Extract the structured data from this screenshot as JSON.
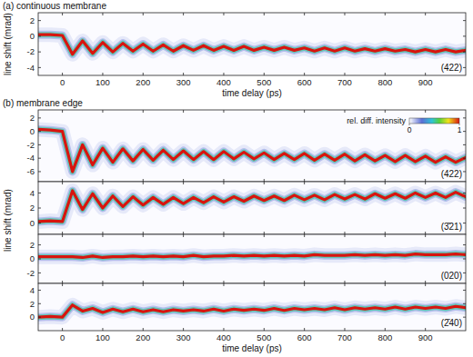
{
  "chart_data": [
    {
      "type": "line",
      "title": "(a) continuous membrane",
      "y_label": "line shift (mrad)",
      "x_label": "time delay (ps)",
      "annotations": [
        "(422)"
      ],
      "xlim": [
        -60,
        1000
      ],
      "xticks": [
        0,
        100,
        200,
        300,
        400,
        500,
        600,
        700,
        800,
        900
      ],
      "ylim": [
        -5,
        3
      ],
      "yticks": [
        2,
        0,
        -2,
        -4
      ],
      "x": [
        -60,
        -30,
        0,
        25,
        50,
        75,
        100,
        125,
        150,
        175,
        200,
        225,
        250,
        275,
        300,
        325,
        350,
        375,
        400,
        425,
        450,
        475,
        500,
        525,
        550,
        575,
        600,
        625,
        650,
        675,
        700,
        725,
        750,
        775,
        800,
        825,
        850,
        875,
        900,
        925,
        950,
        975,
        1000
      ],
      "values": [
        0.2,
        0.2,
        0.1,
        -2.3,
        -0.6,
        -2.2,
        -0.8,
        -2.0,
        -0.9,
        -1.9,
        -1.0,
        -1.9,
        -1.1,
        -1.9,
        -1.2,
        -1.8,
        -1.2,
        -1.8,
        -1.3,
        -1.8,
        -1.3,
        -1.8,
        -1.4,
        -1.8,
        -1.4,
        -1.8,
        -1.5,
        -1.9,
        -1.5,
        -1.9,
        -1.5,
        -1.9,
        -1.6,
        -1.9,
        -1.6,
        -1.9,
        -1.7,
        -2.0,
        -1.7,
        -2.0,
        -1.7,
        -2.0,
        -1.8
      ]
    },
    {
      "type": "line",
      "title": "(b) membrane edge",
      "y_label": "line shift (mrad)",
      "tick_labels": "y",
      "annotations": [
        "(422)"
      ],
      "colorbar": {
        "label": "rel. diff. intensity",
        "range": [
          0,
          1
        ],
        "ticks": [
          0,
          1
        ]
      },
      "xlim": [
        -60,
        1000
      ],
      "xticks": [
        0,
        100,
        200,
        300,
        400,
        500,
        600,
        700,
        800,
        900
      ],
      "ylim": [
        -7.5,
        3.2
      ],
      "yticks": [
        2,
        0,
        -2,
        -4,
        -6
      ],
      "x": [
        -60,
        -30,
        0,
        25,
        50,
        75,
        100,
        125,
        150,
        175,
        200,
        225,
        250,
        275,
        300,
        325,
        350,
        375,
        400,
        425,
        450,
        475,
        500,
        525,
        550,
        575,
        600,
        625,
        650,
        675,
        700,
        725,
        750,
        775,
        800,
        825,
        850,
        875,
        900,
        925,
        950,
        975,
        1000
      ],
      "values": [
        0.3,
        0.2,
        0.0,
        -6.0,
        -2.0,
        -5.0,
        -2.5,
        -4.6,
        -2.6,
        -4.4,
        -2.7,
        -4.3,
        -2.8,
        -4.2,
        -2.9,
        -4.2,
        -3.0,
        -4.2,
        -3.0,
        -4.1,
        -3.1,
        -4.1,
        -3.2,
        -4.2,
        -3.3,
        -4.2,
        -3.3,
        -4.3,
        -3.4,
        -4.3,
        -3.4,
        -4.4,
        -3.5,
        -4.4,
        -3.6,
        -4.5,
        -3.6,
        -4.5,
        -3.7,
        -4.6,
        -3.8,
        -4.6,
        -3.9
      ]
    },
    {
      "type": "line",
      "tick_labels": "y",
      "annotations": [
        "(3̄21)"
      ],
      "xlim": [
        -60,
        1000
      ],
      "xticks": [
        0,
        100,
        200,
        300,
        400,
        500,
        600,
        700,
        800,
        900
      ],
      "ylim": [
        -1.5,
        5.5
      ],
      "yticks": [
        0,
        2,
        4
      ],
      "x": [
        -60,
        -30,
        0,
        25,
        50,
        75,
        100,
        125,
        150,
        175,
        200,
        225,
        250,
        275,
        300,
        325,
        350,
        375,
        400,
        425,
        450,
        475,
        500,
        525,
        550,
        575,
        600,
        625,
        650,
        675,
        700,
        725,
        750,
        775,
        800,
        825,
        850,
        875,
        900,
        925,
        950,
        975,
        1000
      ],
      "values": [
        0.2,
        0.3,
        0.2,
        4.3,
        1.8,
        3.9,
        2.0,
        3.6,
        2.2,
        3.5,
        2.4,
        3.4,
        2.5,
        3.4,
        2.6,
        3.4,
        2.7,
        3.5,
        2.8,
        3.5,
        2.9,
        3.6,
        3.0,
        3.6,
        3.0,
        3.7,
        3.1,
        3.7,
        3.1,
        3.8,
        3.2,
        3.8,
        3.2,
        3.9,
        3.3,
        3.9,
        3.3,
        4.0,
        3.4,
        4.0,
        3.4,
        4.1,
        3.5
      ]
    },
    {
      "type": "line",
      "tick_labels": "y",
      "annotations": [
        "(020)"
      ],
      "xlim": [
        -60,
        1000
      ],
      "xticks": [
        0,
        100,
        200,
        300,
        400,
        500,
        600,
        700,
        800,
        900
      ],
      "ylim": [
        -3.5,
        3.5
      ],
      "yticks": [
        -2,
        0,
        2
      ],
      "x": [
        -60,
        -30,
        0,
        25,
        50,
        75,
        100,
        125,
        150,
        175,
        200,
        225,
        250,
        275,
        300,
        325,
        350,
        375,
        400,
        425,
        450,
        475,
        500,
        525,
        550,
        575,
        600,
        625,
        650,
        675,
        700,
        725,
        750,
        775,
        800,
        825,
        850,
        875,
        900,
        925,
        950,
        975,
        1000
      ],
      "values": [
        0.3,
        0.3,
        0.3,
        0.3,
        0.2,
        0.4,
        0.2,
        0.3,
        0.3,
        0.4,
        0.3,
        0.4,
        0.3,
        0.4,
        0.3,
        0.5,
        0.3,
        0.4,
        0.4,
        0.5,
        0.4,
        0.5,
        0.4,
        0.5,
        0.4,
        0.5,
        0.4,
        0.6,
        0.5,
        0.5,
        0.5,
        0.6,
        0.5,
        0.6,
        0.5,
        0.6,
        0.5,
        0.7,
        0.6,
        0.6,
        0.6,
        0.7,
        0.6
      ]
    },
    {
      "type": "line",
      "x_label": "time delay (ps)",
      "annotations": [
        "(2̄40)"
      ],
      "xlim": [
        -60,
        1000
      ],
      "xticks": [
        0,
        100,
        200,
        300,
        400,
        500,
        600,
        700,
        800,
        900
      ],
      "ylim": [
        -2,
        5
      ],
      "yticks": [
        0,
        2,
        4
      ],
      "x": [
        -60,
        -30,
        0,
        25,
        50,
        75,
        100,
        125,
        150,
        175,
        200,
        225,
        250,
        275,
        300,
        325,
        350,
        375,
        400,
        425,
        450,
        475,
        500,
        525,
        550,
        575,
        600,
        625,
        650,
        675,
        700,
        725,
        750,
        775,
        800,
        825,
        850,
        875,
        900,
        925,
        950,
        975,
        1000
      ],
      "values": [
        0.0,
        0.1,
        0.0,
        1.8,
        0.9,
        1.3,
        0.7,
        1.2,
        0.8,
        1.2,
        0.8,
        1.1,
        0.8,
        1.1,
        0.9,
        1.1,
        0.9,
        1.2,
        0.9,
        1.2,
        1.0,
        1.2,
        1.0,
        1.3,
        1.0,
        1.3,
        1.1,
        1.3,
        1.1,
        1.4,
        1.1,
        1.4,
        1.2,
        1.4,
        1.2,
        1.5,
        1.2,
        1.5,
        1.3,
        1.5,
        1.3,
        1.6,
        1.4
      ]
    }
  ]
}
